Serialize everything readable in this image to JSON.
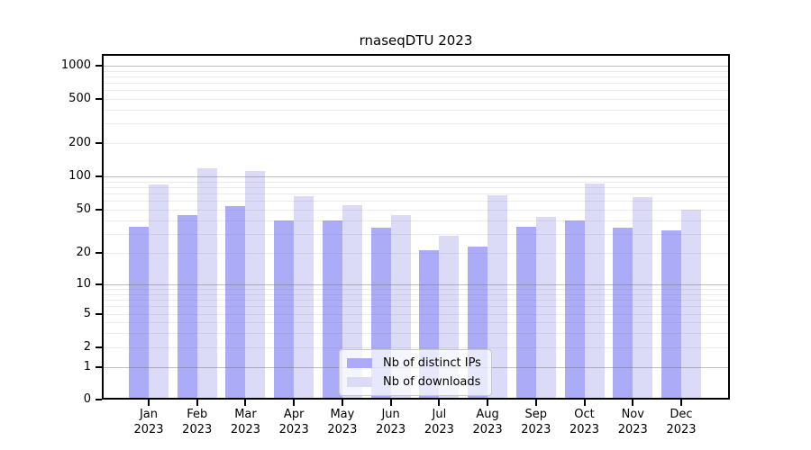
{
  "title": "rnaseqDTU 2023",
  "chart_data": {
    "type": "bar",
    "title": "rnaseqDTU 2023",
    "categories": [
      "Jan",
      "Feb",
      "Mar",
      "Apr",
      "May",
      "Jun",
      "Jul",
      "Aug",
      "Sep",
      "Oct",
      "Nov",
      "Dec"
    ],
    "year_label": "2023",
    "series": [
      {
        "name": "Nb of distinct IPs",
        "color": "#ababf8",
        "values": [
          35,
          45,
          54,
          40,
          40,
          34,
          21,
          23,
          35,
          40,
          34,
          32
        ]
      },
      {
        "name": "Nb of downloads",
        "color": "#dbdbf7",
        "values": [
          84,
          118,
          112,
          66,
          55,
          45,
          29,
          68,
          43,
          86,
          65,
          50
        ]
      }
    ],
    "xlabel": "",
    "ylabel": "",
    "y_ticks": [
      0,
      1,
      2,
      5,
      10,
      20,
      50,
      100,
      200,
      500,
      1000
    ],
    "y_scale": "log-like",
    "ylim": [
      0,
      1250
    ],
    "grid": "horizontal",
    "legend_position": "bottom-center",
    "colors": {
      "bar_distinct_ips": "#ababf8",
      "bar_downloads": "#dbdbf7",
      "grid_major": "#bdbdbd",
      "grid_minor": "#ebebeb",
      "axis": "#000000"
    }
  }
}
